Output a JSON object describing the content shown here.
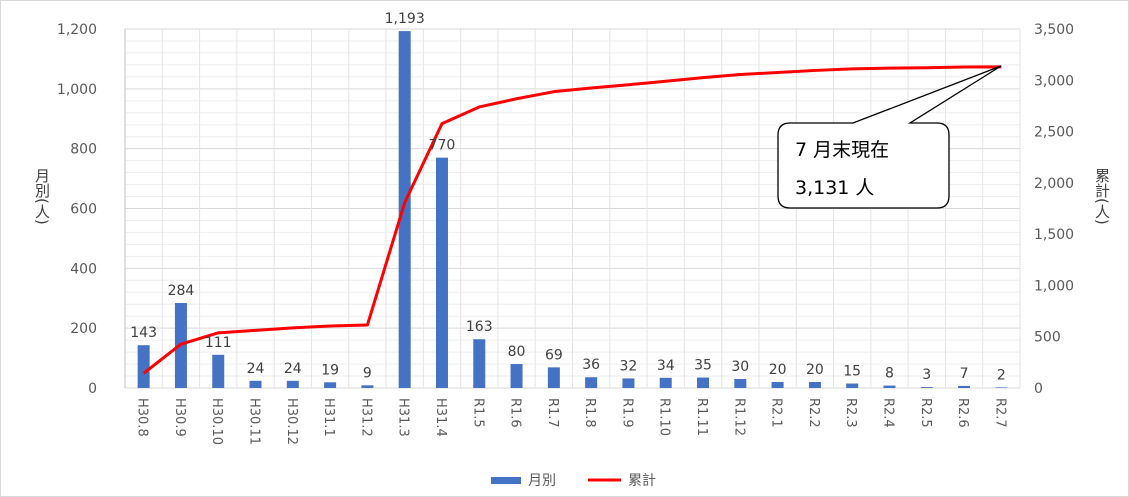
{
  "chart_data": {
    "type": "bar",
    "categories": [
      "H30.8",
      "H30.9",
      "H30.10",
      "H30.11",
      "H30.12",
      "H31.1",
      "H31.2",
      "H31.3",
      "H31.4",
      "R1.5",
      "R1.6",
      "R1.7",
      "R1.8",
      "R1.9",
      "R1.10",
      "R1.11",
      "R1.12",
      "R2.1",
      "R2.2",
      "R2.3",
      "R2.4",
      "R2.5",
      "R2.6",
      "R2.7"
    ],
    "series": [
      {
        "name": "月別",
        "type": "bar",
        "axis": "left",
        "color": "#4472C4",
        "values": [
          143,
          284,
          111,
          24,
          24,
          19,
          9,
          1193,
          770,
          163,
          80,
          69,
          36,
          32,
          34,
          35,
          30,
          20,
          20,
          15,
          8,
          3,
          7,
          2
        ]
      },
      {
        "name": "累計",
        "type": "line",
        "axis": "right",
        "color": "#FF0000",
        "values": [
          143,
          427,
          538,
          562,
          586,
          605,
          614,
          1807,
          2577,
          2740,
          2820,
          2889,
          2925,
          2957,
          2991,
          3026,
          3056,
          3076,
          3096,
          3111,
          3119,
          3122,
          3129,
          3131
        ]
      }
    ],
    "data_labels": [
      "143",
      "284",
      "111",
      "24",
      "24",
      "19",
      "9",
      "1,193",
      "770",
      "163",
      "80",
      "69",
      "36",
      "32",
      "34",
      "35",
      "30",
      "20",
      "20",
      "15",
      "8",
      "3",
      "7",
      "2"
    ],
    "y_left": {
      "label": "月別(人)",
      "ylim": [
        0,
        1200
      ],
      "ticks": [
        "0",
        "200",
        "400",
        "600",
        "800",
        "1,000",
        "1,200"
      ]
    },
    "y_right": {
      "label": "累計(人)",
      "ylim": [
        0,
        3500
      ],
      "ticks": [
        "0",
        "500",
        "1,000",
        "1,500",
        "2,000",
        "2,500",
        "3,000",
        "3,500"
      ]
    },
    "grid": true,
    "legend": {
      "position": "bottom",
      "items": [
        "月別",
        "累計"
      ]
    },
    "annotation": {
      "line1": "7 月末現在",
      "line2": "3,131 人"
    }
  }
}
